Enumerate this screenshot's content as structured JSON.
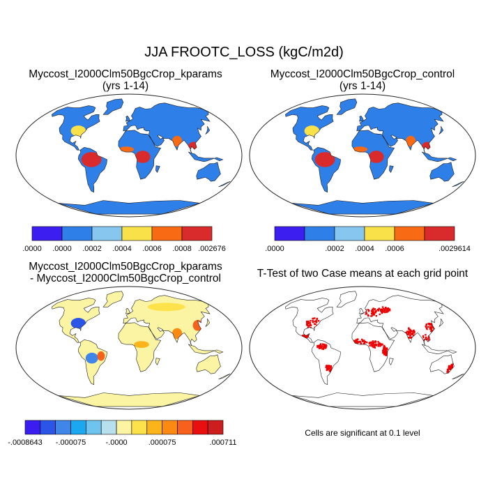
{
  "title": "JJA FROOTC_LOSS (kgC/m2d)",
  "colors": {
    "ocean": "#ffffff",
    "coast": "#1a1a1a",
    "frame": "#222222",
    "sig": "#ee0000",
    "land_fill_ttest": "#ffffff"
  },
  "chart_data": [
    {
      "type": "heatmap",
      "title": "Myccost_I2000Clm50BgcCrop_kparams",
      "subtitle": "(yrs 1-14)",
      "colorbar": {
        "colors": [
          "#3c1ef0",
          "#2f7fe8",
          "#86c6ef",
          "#f9e14a",
          "#f86a14",
          "#d92b2b"
        ],
        "tick_labels": [
          ".0000",
          ".0000",
          ".0002",
          ".0004",
          ".0006",
          ".0008",
          ".002676"
        ]
      },
      "regions": [
        {
          "name": "eastern-us",
          "level": 3
        },
        {
          "name": "amazon",
          "level": 5
        },
        {
          "name": "congo",
          "level": 5
        },
        {
          "name": "west-africa",
          "level": 4
        },
        {
          "name": "india",
          "level": 4
        },
        {
          "name": "southeast-asia",
          "level": 5
        },
        {
          "name": "siberia",
          "level": 1
        },
        {
          "name": "boreal-canada",
          "level": 1
        },
        {
          "name": "europe",
          "level": 1
        }
      ]
    },
    {
      "type": "heatmap",
      "title": "Myccost_I2000Clm50BgcCrop_control",
      "subtitle": "(yrs 1-14)",
      "colorbar": {
        "colors": [
          "#3c1ef0",
          "#2f7fe8",
          "#86c6ef",
          "#f9e14a",
          "#f86a14",
          "#d92b2b"
        ],
        "tick_labels": [
          ".0000",
          ".0002",
          ".0004",
          ".0006",
          ".0029614"
        ]
      },
      "regions": [
        {
          "name": "eastern-us",
          "level": 3
        },
        {
          "name": "amazon",
          "level": 5
        },
        {
          "name": "congo",
          "level": 5
        },
        {
          "name": "west-africa",
          "level": 4
        },
        {
          "name": "india",
          "level": 4
        },
        {
          "name": "southeast-asia",
          "level": 5
        },
        {
          "name": "siberia",
          "level": 1
        },
        {
          "name": "boreal-canada",
          "level": 1
        },
        {
          "name": "europe",
          "level": 1
        }
      ]
    },
    {
      "type": "heatmap",
      "title": "Myccost_I2000Clm50BgcCrop_kparams",
      "subtitle": "- Myccost_I2000Clm50BgcCrop_control",
      "colorbar": {
        "colors": [
          "#3a1ef0",
          "#2b55e6",
          "#3f86e8",
          "#1ba8f0",
          "#6ec3ef",
          "#b7dfee",
          "#fbf4a3",
          "#fde24b",
          "#fbb41a",
          "#fb8a12",
          "#f8611b",
          "#ea0f0f",
          "#cc1e1e"
        ],
        "tick_labels": [
          "-.0008643",
          "-.000075",
          "-.0000",
          ".000075",
          ".000711"
        ]
      },
      "regions": [
        {
          "name": "eastern-us",
          "level": 1
        },
        {
          "name": "central-south-america",
          "level": 2
        },
        {
          "name": "east-brazil",
          "level": 10
        },
        {
          "name": "east-asia",
          "level": 10
        },
        {
          "name": "india",
          "level": 9
        },
        {
          "name": "central-africa",
          "level": 8
        },
        {
          "name": "boreal-eurasia",
          "level": 7
        }
      ]
    },
    {
      "type": "heatmap",
      "title": "T-Test of two Case means at each grid point",
      "annotation": "Cells are significant at 0.1 level",
      "significant_regions": [
        "eastern-us",
        "central-america",
        "amazon-north",
        "la-plata",
        "west-africa",
        "central-africa",
        "east-africa",
        "europe",
        "russia",
        "india",
        "east-china",
        "southeast-asia",
        "australia-east"
      ]
    }
  ]
}
